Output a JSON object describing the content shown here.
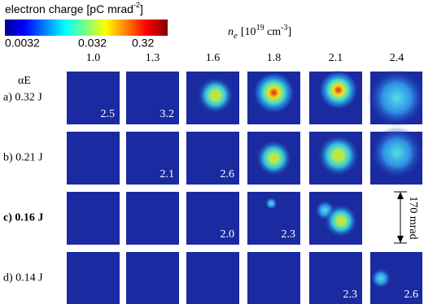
{
  "colorbar": {
    "label": "electron charge [pC mrad",
    "label_sup": "-2",
    "label_end": "]",
    "ticks": [
      "0.0032",
      "0.032",
      "0.32"
    ]
  },
  "header": {
    "symbol": "n",
    "symbol_sub": "e",
    "unit": "[10",
    "unit_sup": "19",
    "unit_mid": " cm",
    "unit_sup2": "-3",
    "unit_end": "]"
  },
  "columns": [
    "1.0",
    "1.3",
    "1.6",
    "1.8",
    "2.1",
    "2.4"
  ],
  "row_header": "αE",
  "rows": [
    {
      "label": "a) 0.32 J",
      "notes": [
        "2.5",
        "3.2",
        null,
        null,
        null,
        null
      ]
    },
    {
      "label": "b) 0.21 J",
      "notes": [
        null,
        "2.1",
        "2.6",
        null,
        null,
        null
      ]
    },
    {
      "label": "c) 0.16 J",
      "notes": [
        null,
        null,
        "2.0",
        "2.3",
        null,
        null
      ]
    },
    {
      "label": "d) 0.14 J",
      "notes": [
        null,
        null,
        null,
        null,
        "2.3",
        "2.6"
      ]
    }
  ],
  "scale_bar": "170 mrad"
}
